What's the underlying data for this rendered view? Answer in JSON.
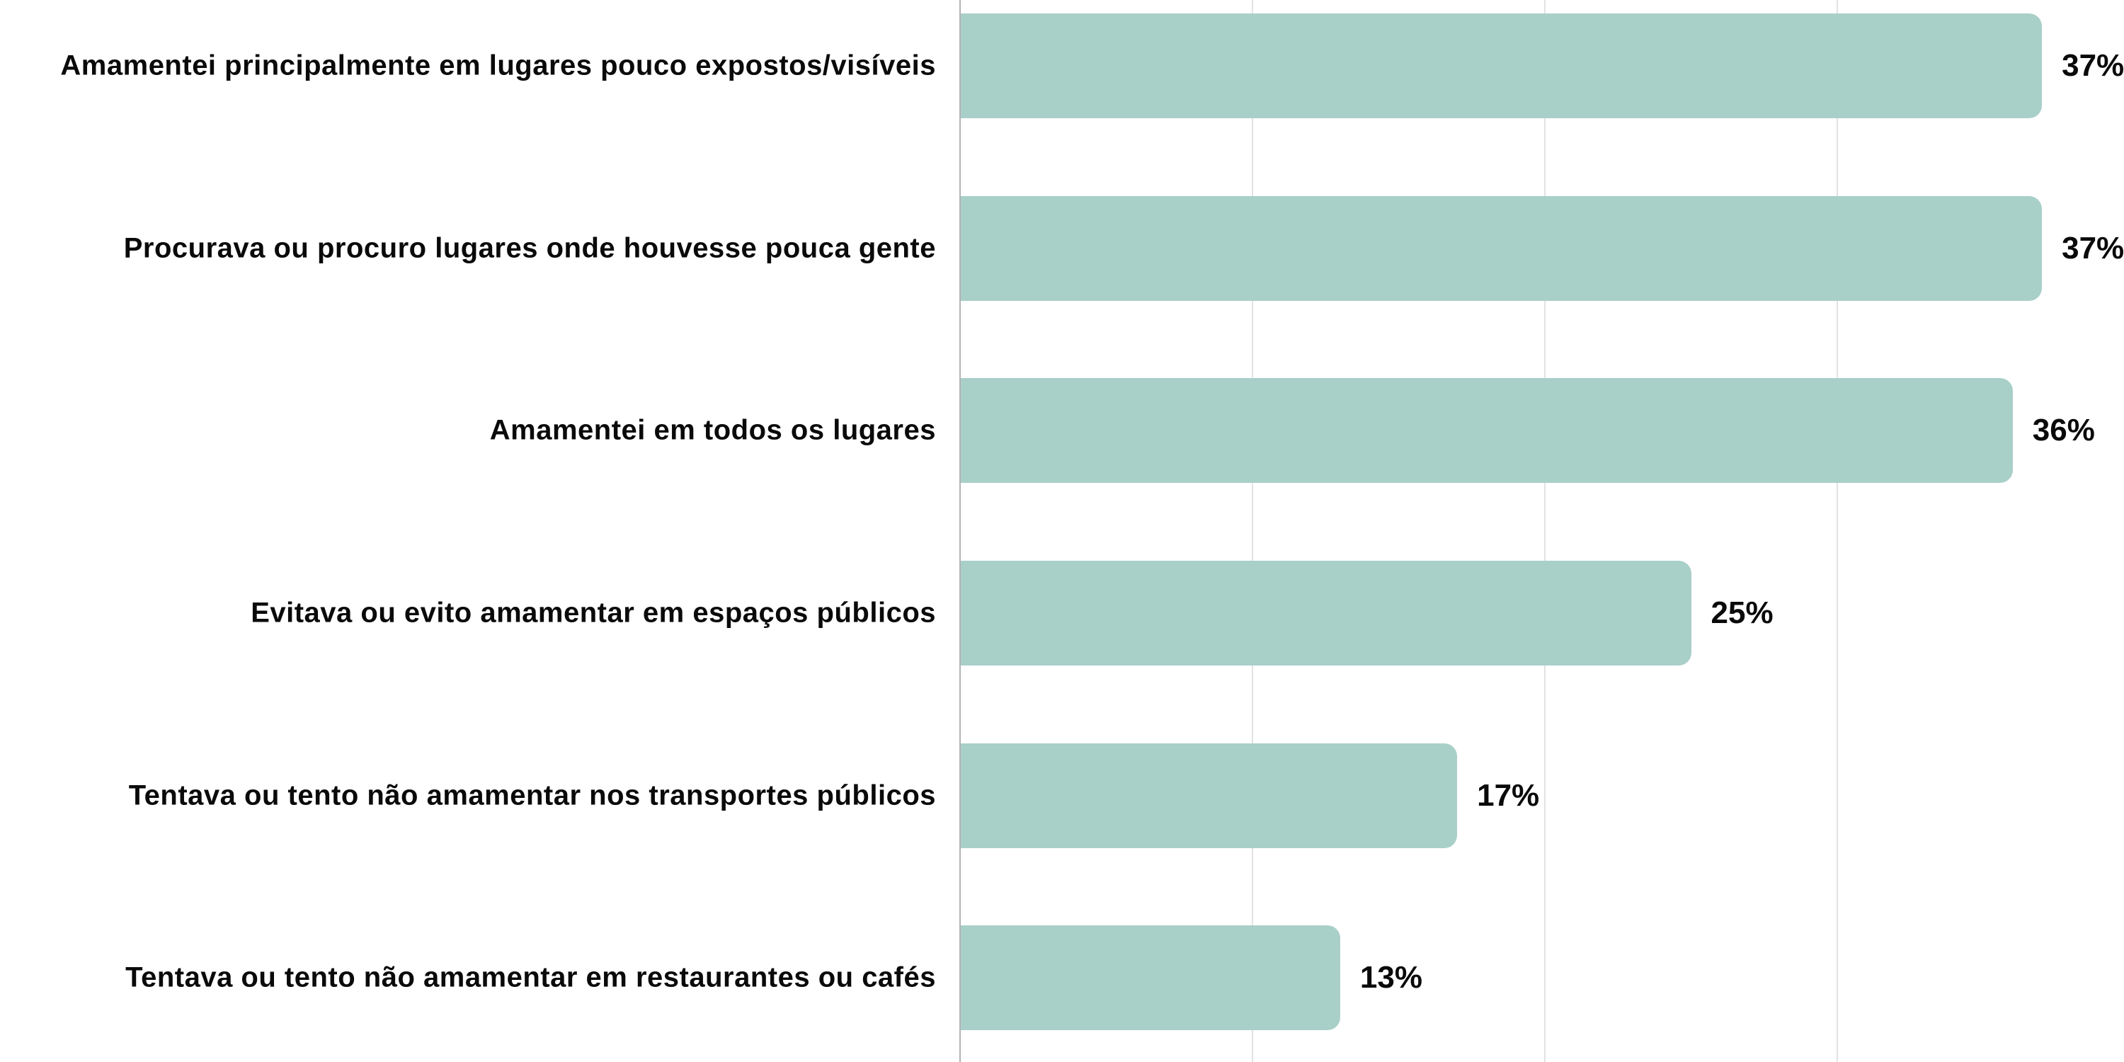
{
  "chart_data": {
    "type": "bar",
    "orientation": "horizontal",
    "title": "",
    "xlabel": "",
    "ylabel": "",
    "categories": [
      "Amamentei principalmente em lugares pouco expostos/visíveis",
      "Procurava ou procuro lugares onde houvesse pouca gente",
      "Amamentei em todos os lugares",
      "Evitava ou evito amamentar em espaços públicos",
      "Tentava ou tento não amamentar nos transportes públicos",
      "Tentava ou tento não amamentar em restaurantes ou cafés"
    ],
    "values": [
      37,
      37,
      36,
      25,
      17,
      13
    ],
    "value_suffix": "%",
    "value_labels": [
      "37%",
      "37%",
      "36%",
      "25%",
      "17%",
      "13%"
    ],
    "xlim": [
      0,
      40
    ],
    "gridline_values": [
      0,
      10,
      20,
      30
    ],
    "gridline_labels_visible": false,
    "grid": true,
    "legend": false,
    "colors": {
      "bar": "#a9cfc9",
      "gridline": "#e2e2e2",
      "axis_line": "#b3b3b3",
      "text": "#0a0a0a",
      "background": "#ffffff"
    }
  }
}
